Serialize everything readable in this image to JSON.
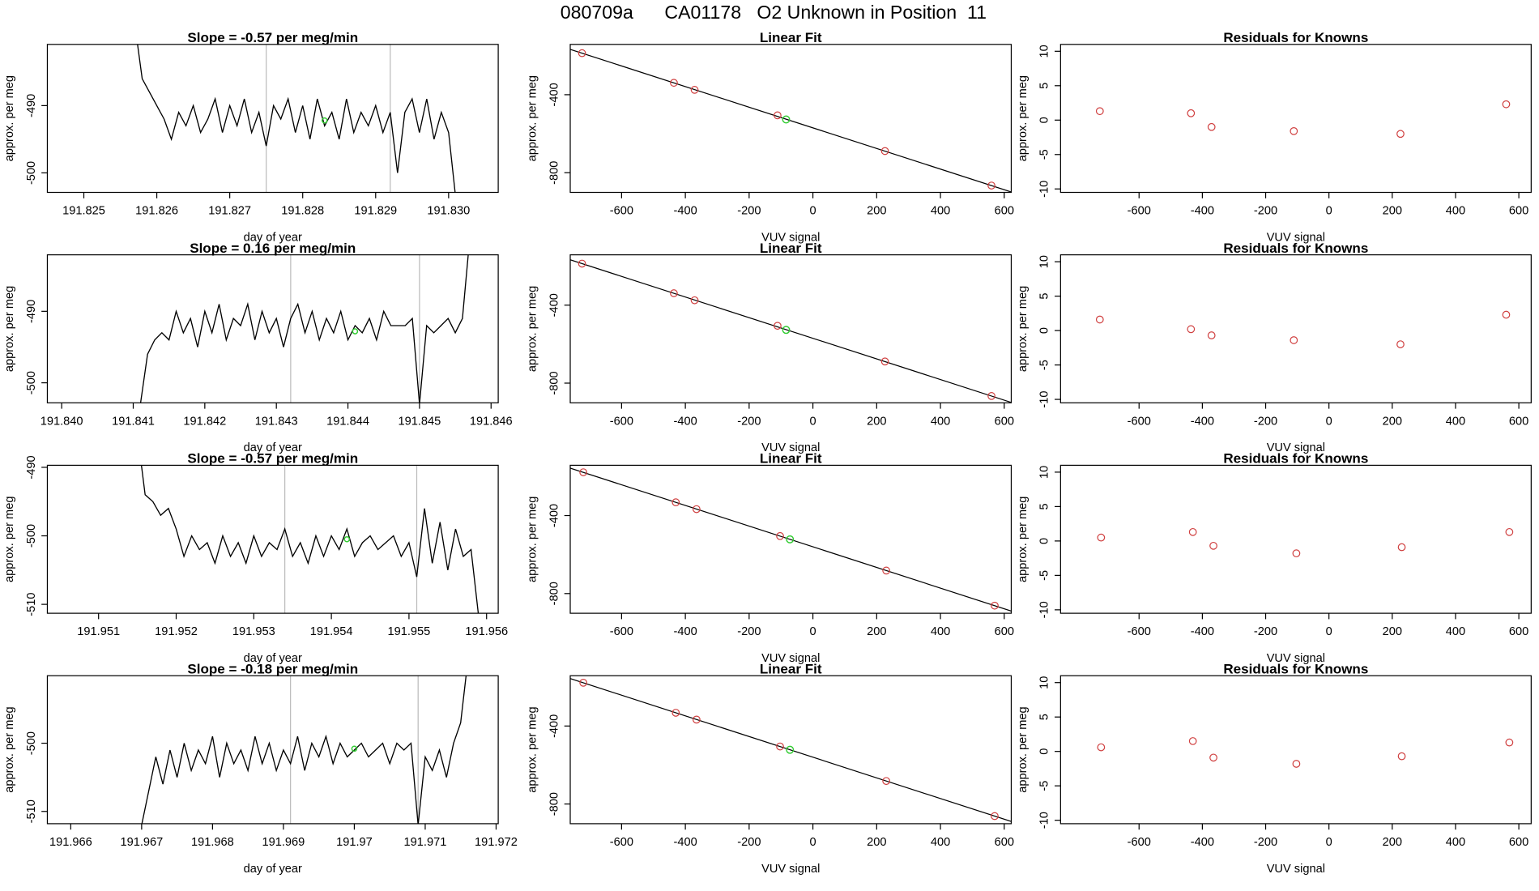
{
  "title": "080709a      CA01178   O2 Unknown in Position  11",
  "chart_data": [
    {
      "type": "line",
      "title": "Slope =  -0.57  per meg/min",
      "x_label": "day of year",
      "y_label": "approx. per meg",
      "xlim": [
        191.8245,
        191.83068
      ],
      "xticks": [
        191.825,
        191.826,
        191.827,
        191.828,
        191.829,
        {
          "value": 191.83,
          "label": "191.830"
        }
      ],
      "ylim": [
        -502.9,
        -480.9
      ],
      "yticks": [
        -490,
        -500
      ],
      "vlines": [
        191.8275,
        191.8292
      ],
      "highlight": {
        "x": 191.8283,
        "value": -492.2,
        "color": "#33cc33"
      },
      "series": [
        {
          "color": "#000000",
          "x": [
            191.8257,
            191.8258,
            191.8259,
            191.826,
            191.8261,
            191.8262,
            191.8263,
            191.8264,
            191.8265,
            191.8266,
            191.8267,
            191.8268,
            191.8269,
            191.827,
            191.8271,
            191.8272,
            191.8273,
            191.8274,
            191.8275,
            191.8276,
            191.8277,
            191.8278,
            191.8279,
            191.828,
            191.8281,
            191.8282,
            191.8283,
            191.8284,
            191.8285,
            191.8286,
            191.8287,
            191.8288,
            191.8289,
            191.829,
            191.8291,
            191.8292,
            191.8293,
            191.8294,
            191.8295,
            191.8296,
            191.8297,
            191.8298,
            191.8299,
            191.83,
            191.8301
          ],
          "values": [
            -478,
            -486,
            -488,
            -490,
            -492,
            -495,
            -491,
            -493,
            -490,
            -494,
            -492,
            -489,
            -494,
            -490,
            -493,
            -489,
            -494,
            -491,
            -496,
            -490,
            -492,
            -489,
            -494,
            -490,
            -495,
            -489,
            -493,
            -491,
            -495,
            -489,
            -494,
            -491,
            -493,
            -490,
            -494,
            -491,
            -500,
            -491,
            -489,
            -494,
            -489,
            -495,
            -491,
            -494,
            -504
          ]
        }
      ]
    },
    {
      "type": "scatter",
      "title": "Linear Fit",
      "x_label": "VUV signal",
      "y_label": "approx. per meg",
      "xlim": [
        -761,
        622
      ],
      "xticks": [
        -600,
        -400,
        -200,
        0,
        200,
        400,
        600
      ],
      "ylim": [
        -901,
        -142
      ],
      "yticks": [
        -400,
        -800
      ],
      "fit": {
        "slope": -0.529,
        "intercept": -570
      },
      "highlight": {
        "x": -84,
        "value": -527,
        "color": "#33cc33"
      },
      "series": [
        {
          "color": "#d04040",
          "x": [
            -724,
            -436,
            -371,
            -111,
            226,
            560
          ],
          "values": [
            -187,
            -339,
            -375,
            -506,
            -689,
            -866
          ]
        }
      ]
    },
    {
      "type": "scatter",
      "title": "Residuals for Knowns",
      "x_label": "VUV signal",
      "y_label": "approx. per meg",
      "xlim": [
        -848,
        639
      ],
      "xticks": [
        -600,
        -400,
        -200,
        0,
        200,
        400,
        600
      ],
      "ylim": [
        -10.5,
        11
      ],
      "yticks": [
        10,
        5,
        0,
        -5,
        -10
      ],
      "series": [
        {
          "color": "#d04040",
          "x": [
            -724,
            -436,
            -371,
            -111,
            226,
            560
          ],
          "values": [
            1.3,
            1.0,
            -1.0,
            -1.6,
            -2.0,
            2.3
          ]
        }
      ]
    },
    {
      "type": "line",
      "title": "Slope =  0.16  per meg/min",
      "x_label": "day of year",
      "y_label": "approx. per meg",
      "xlim": [
        191.8398,
        191.8461
      ],
      "xticks": [
        {
          "value": 191.84,
          "label": "191.840"
        },
        191.841,
        191.842,
        191.843,
        191.844,
        191.845,
        191.846
      ],
      "ylim": [
        -502.8,
        -482.1
      ],
      "yticks": [
        -490,
        -500
      ],
      "vlines": [
        191.8432,
        191.845
      ],
      "highlight": {
        "x": 191.8441,
        "value": -492.8,
        "color": "#33cc33"
      },
      "series": [
        {
          "color": "#000000",
          "x": [
            191.8411,
            191.8412,
            191.8413,
            191.8414,
            191.8415,
            191.8416,
            191.8417,
            191.8418,
            191.8419,
            191.842,
            191.8421,
            191.8422,
            191.8423,
            191.8424,
            191.8425,
            191.8426,
            191.8427,
            191.8428,
            191.8429,
            191.843,
            191.8431,
            191.8432,
            191.8433,
            191.8434,
            191.8435,
            191.8436,
            191.8437,
            191.8438,
            191.8439,
            191.844,
            191.8441,
            191.8442,
            191.8443,
            191.8444,
            191.8445,
            191.8446,
            191.8447,
            191.8448,
            191.8449,
            191.845,
            191.8451,
            191.8452,
            191.8453,
            191.8454,
            191.8455,
            191.8456,
            191.8457
          ],
          "values": [
            -503,
            -496,
            -494,
            -493,
            -494,
            -490,
            -493,
            -491,
            -495,
            -490,
            -493,
            -489,
            -494,
            -491,
            -492,
            -489,
            -494,
            -490,
            -493,
            -491,
            -495,
            -491,
            -489,
            -493,
            -490,
            -494,
            -491,
            -493,
            -490,
            -494,
            -492,
            -493,
            -491,
            -494,
            -490,
            -492,
            -492,
            -492,
            -491,
            -503,
            -492,
            -493,
            -492,
            -491,
            -493,
            -491,
            -480
          ]
        }
      ]
    },
    {
      "type": "scatter",
      "title": "Linear Fit",
      "x_label": "VUV signal",
      "y_label": "approx. per meg",
      "xlim": [
        -761,
        622
      ],
      "xticks": [
        -600,
        -400,
        -200,
        0,
        200,
        400,
        600
      ],
      "ylim": [
        -901,
        -142
      ],
      "yticks": [
        -400,
        -800
      ],
      "fit": {
        "slope": -0.529,
        "intercept": -570
      },
      "highlight": {
        "x": -84,
        "value": -527,
        "color": "#33cc33"
      },
      "series": [
        {
          "color": "#d04040",
          "x": [
            -724,
            -436,
            -371,
            -111,
            226,
            560
          ],
          "values": [
            -187,
            -339,
            -375,
            -506,
            -689,
            -866
          ]
        }
      ]
    },
    {
      "type": "scatter",
      "title": "Residuals for Knowns",
      "x_label": "VUV signal",
      "y_label": "approx. per meg",
      "xlim": [
        -848,
        639
      ],
      "xticks": [
        -600,
        -400,
        -200,
        0,
        200,
        400,
        600
      ],
      "ylim": [
        -10.5,
        11
      ],
      "yticks": [
        10,
        5,
        0,
        -5,
        -10
      ],
      "series": [
        {
          "color": "#d04040",
          "x": [
            -724,
            -436,
            -371,
            -111,
            226,
            560
          ],
          "values": [
            1.6,
            0.2,
            -0.7,
            -1.4,
            -2.0,
            2.3
          ]
        }
      ]
    },
    {
      "type": "line",
      "title": "Slope =  -0.57  per meg/min",
      "x_label": "day of year",
      "y_label": "approx. per meg",
      "xlim": [
        191.95034,
        191.95615
      ],
      "xticks": [
        191.951,
        191.952,
        191.953,
        191.954,
        191.955,
        191.956
      ],
      "ylim": [
        -511.3,
        -489.7
      ],
      "yticks": [
        -490,
        -500,
        -510
      ],
      "vlines": [
        191.9534,
        191.9551
      ],
      "highlight": {
        "x": 191.9542,
        "value": -500.5,
        "color": "#33cc33"
      },
      "series": [
        {
          "color": "#000000",
          "x": [
            191.9515,
            191.9516,
            191.9517,
            191.9518,
            191.9519,
            191.952,
            191.9521,
            191.9522,
            191.9523,
            191.9524,
            191.9525,
            191.9526,
            191.9527,
            191.9528,
            191.9529,
            191.953,
            191.9531,
            191.9532,
            191.9533,
            191.9534,
            191.9535,
            191.9536,
            191.9537,
            191.9538,
            191.9539,
            191.954,
            191.9541,
            191.9542,
            191.9543,
            191.9544,
            191.9545,
            191.9546,
            191.9547,
            191.9548,
            191.9549,
            191.955,
            191.9551,
            191.9552,
            191.9553,
            191.9554,
            191.9555,
            191.9556,
            191.9557,
            191.9558,
            191.9559
          ],
          "values": [
            -485,
            -494,
            -495,
            -497,
            -496,
            -499,
            -503,
            -500,
            -502,
            -501,
            -504,
            -500,
            -503,
            -501,
            -504,
            -500,
            -503,
            -501,
            -502,
            -499,
            -503,
            -501,
            -504,
            -500,
            -503,
            -500,
            -502,
            -499,
            -503,
            -501,
            -500,
            -502,
            -501,
            -500,
            -503,
            -501,
            -506,
            -496,
            -504,
            -498,
            -505,
            -499,
            -503,
            -502,
            -512
          ]
        }
      ]
    },
    {
      "type": "scatter",
      "title": "Linear Fit",
      "x_label": "VUV signal",
      "y_label": "approx. per meg",
      "xlim": [
        -761,
        622
      ],
      "xticks": [
        -600,
        -400,
        -200,
        0,
        200,
        400,
        600
      ],
      "ylim": [
        -901,
        -142
      ],
      "yticks": [
        -400,
        -800
      ],
      "fit": {
        "slope": -0.53,
        "intercept": -560
      },
      "highlight": {
        "x": -72,
        "value": -522,
        "color": "#33cc33"
      },
      "series": [
        {
          "color": "#d04040",
          "x": [
            -720,
            -430,
            -365,
            -103,
            230,
            570
          ],
          "values": [
            -178,
            -332,
            -367,
            -505,
            -682,
            -862
          ]
        }
      ]
    },
    {
      "type": "scatter",
      "title": "Residuals for Knowns",
      "x_label": "VUV signal",
      "y_label": "approx. per meg",
      "xlim": [
        -848,
        639
      ],
      "xticks": [
        -600,
        -400,
        -200,
        0,
        200,
        400,
        600
      ],
      "ylim": [
        -10.5,
        11
      ],
      "yticks": [
        10,
        5,
        0,
        -5,
        -10
      ],
      "series": [
        {
          "color": "#d04040",
          "x": [
            -720,
            -430,
            -365,
            -103,
            230,
            570
          ],
          "values": [
            0.5,
            1.3,
            -0.7,
            -1.8,
            -0.9,
            1.3
          ]
        }
      ]
    },
    {
      "type": "line",
      "title": "Slope =  -0.18  per meg/min",
      "x_label": "day of year",
      "y_label": "approx. per meg",
      "xlim": [
        191.96567,
        191.97203
      ],
      "xticks": [
        191.966,
        191.967,
        191.968,
        191.969,
        191.97,
        191.971,
        191.972
      ],
      "ylim": [
        -511.8,
        -490.1
      ],
      "yticks": [
        -500,
        -510
      ],
      "vlines": [
        191.9691,
        191.9709
      ],
      "highlight": {
        "x": 191.97,
        "value": -500.8,
        "color": "#33cc33"
      },
      "series": [
        {
          "color": "#000000",
          "x": [
            191.967,
            191.9671,
            191.9672,
            191.9673,
            191.9674,
            191.9675,
            191.9676,
            191.9677,
            191.9678,
            191.9679,
            191.968,
            191.9681,
            191.9682,
            191.9683,
            191.9684,
            191.9685,
            191.9686,
            191.9687,
            191.9688,
            191.9689,
            191.969,
            191.9691,
            191.9692,
            191.9693,
            191.9694,
            191.9695,
            191.9696,
            191.9697,
            191.9698,
            191.9699,
            191.97,
            191.9701,
            191.9702,
            191.9703,
            191.9704,
            191.9705,
            191.9706,
            191.9707,
            191.9708,
            191.9709,
            191.971,
            191.9711,
            191.9712,
            191.9713,
            191.9714,
            191.9715,
            191.9716
          ],
          "values": [
            -512,
            -507,
            -502,
            -506,
            -501,
            -505,
            -500,
            -504,
            -501,
            -503,
            -499,
            -505,
            -500,
            -503,
            -501,
            -504,
            -499,
            -503,
            -500,
            -504,
            -501,
            -503,
            -499,
            -504,
            -500,
            -502,
            -499,
            -503,
            -500,
            -502,
            -501,
            -500,
            -502,
            -501,
            -500,
            -503,
            -500,
            -501,
            -500,
            -512,
            -502,
            -504,
            -501,
            -505,
            -500,
            -497,
            -488
          ]
        }
      ]
    },
    {
      "type": "scatter",
      "title": "Linear Fit",
      "x_label": "VUV signal",
      "y_label": "approx. per meg",
      "xlim": [
        -761,
        622
      ],
      "xticks": [
        -600,
        -400,
        -200,
        0,
        200,
        400,
        600
      ],
      "ylim": [
        -901,
        -142
      ],
      "yticks": [
        -400,
        -800
      ],
      "fit": {
        "slope": -0.53,
        "intercept": -560
      },
      "highlight": {
        "x": -72,
        "value": -522,
        "color": "#33cc33"
      },
      "series": [
        {
          "color": "#d04040",
          "x": [
            -720,
            -430,
            -365,
            -103,
            230,
            570
          ],
          "values": [
            -178,
            -332,
            -367,
            -505,
            -682,
            -862
          ]
        }
      ]
    },
    {
      "type": "scatter",
      "title": "Residuals for Knowns",
      "x_label": "VUV signal",
      "y_label": "approx. per meg",
      "xlim": [
        -848,
        639
      ],
      "xticks": [
        -600,
        -400,
        -200,
        0,
        200,
        400,
        600
      ],
      "ylim": [
        -10.5,
        11
      ],
      "yticks": [
        10,
        5,
        0,
        -5,
        -10
      ],
      "series": [
        {
          "color": "#d04040",
          "x": [
            -720,
            -430,
            -365,
            -103,
            230,
            570
          ],
          "values": [
            0.6,
            1.5,
            -0.9,
            -1.8,
            -0.7,
            1.3
          ]
        }
      ]
    }
  ]
}
